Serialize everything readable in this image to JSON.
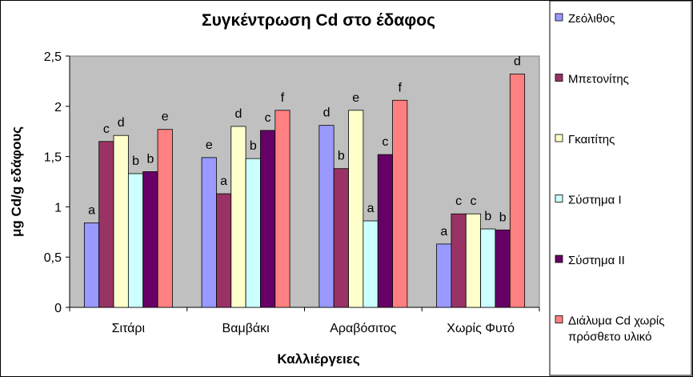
{
  "chart_data": {
    "type": "bar",
    "title": "Συγκέντρωση Cd στο έδαφος",
    "xlabel": "Καλλιέργειες",
    "ylabel": "μg Cd/g εδάφους",
    "ylim": [
      0,
      2.5
    ],
    "yticks": [
      "0",
      "0,5",
      "1",
      "1,5",
      "2",
      "2,5"
    ],
    "categories": [
      "Σιτάρι",
      "Βαμβάκι",
      "Αραβόσιτος",
      "Χωρίς Φυτό"
    ],
    "series": [
      {
        "name": "Ζεόλιθος",
        "color": "#9999FF",
        "values": [
          0.84,
          1.49,
          1.81,
          0.63
        ],
        "labels": [
          "a",
          "e",
          "d",
          "a"
        ]
      },
      {
        "name": "Μπετονίτης",
        "color": "#993366",
        "values": [
          1.65,
          1.13,
          1.38,
          0.93
        ],
        "labels": [
          "c",
          "a",
          "b",
          "c"
        ]
      },
      {
        "name": "Γκαιτίτης",
        "color": "#FFFFCC",
        "values": [
          1.71,
          1.8,
          1.96,
          0.93
        ],
        "labels": [
          "d",
          "d",
          "e",
          "c"
        ]
      },
      {
        "name": "Σύστημα Ι",
        "color": "#CCFFFF",
        "values": [
          1.33,
          1.48,
          0.86,
          0.78
        ],
        "labels": [
          "b",
          "b",
          "a",
          "b"
        ]
      },
      {
        "name": "Σύστημα ΙΙ",
        "color": "#660066",
        "values": [
          1.35,
          1.76,
          1.52,
          0.77
        ],
        "labels": [
          "b",
          "c",
          "c",
          "b"
        ]
      },
      {
        "name": "Διάλυμα Cd χωρίς πρόσθετο υλικό",
        "color": "#FF8080",
        "values": [
          1.77,
          1.96,
          2.06,
          2.32
        ],
        "labels": [
          "e",
          "f",
          "f",
          "d"
        ]
      }
    ],
    "legend_position": "right",
    "grid": false,
    "plot_background": "#C0C0C0"
  }
}
